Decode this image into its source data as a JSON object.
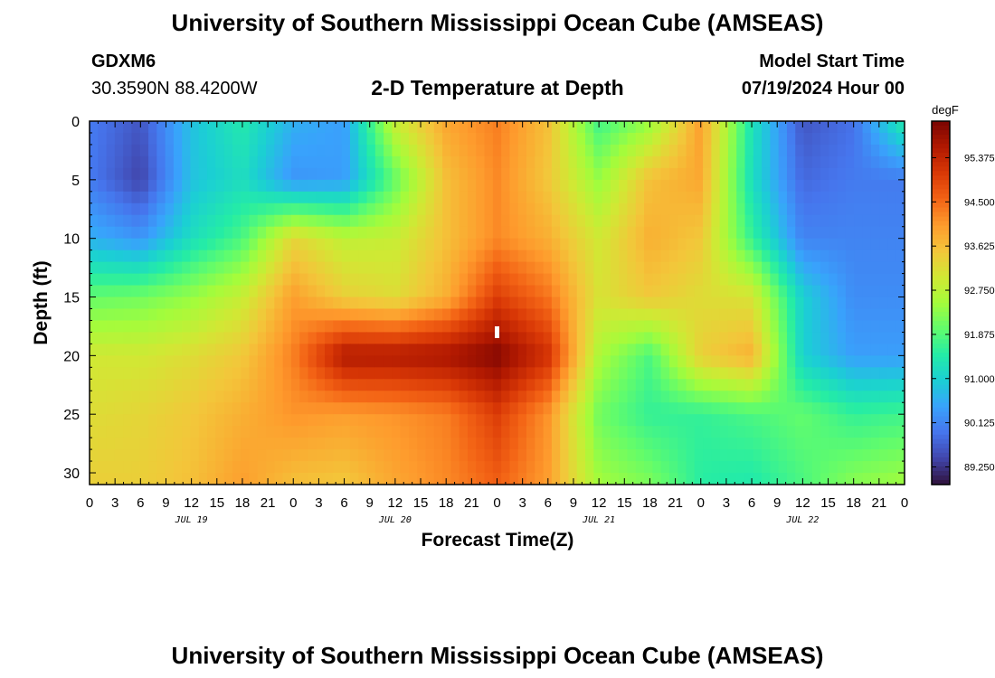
{
  "header": {
    "title": "University of Southern Mississippi Ocean Cube (AMSEAS)",
    "station": "GDXM6",
    "coords": "30.3590N  88.4200W",
    "plot_title": "2-D Temperature at Depth",
    "start_label": "Model Start Time",
    "start_value": "07/19/2024 Hour 00"
  },
  "footer": {
    "title": "University of Southern Mississippi Ocean Cube (AMSEAS)"
  },
  "chart_data": {
    "type": "heatmap",
    "title": "2-D Temperature at Depth",
    "xlabel": "Forecast Time(Z)",
    "ylabel": "Depth (ft)",
    "x_tick_labels": [
      "0",
      "3",
      "6",
      "9",
      "12",
      "15",
      "18",
      "21",
      "0",
      "3",
      "6",
      "9",
      "12",
      "15",
      "18",
      "21",
      "0",
      "3",
      "6",
      "9",
      "12",
      "15",
      "18",
      "21",
      "0",
      "3",
      "6",
      "9",
      "12",
      "15",
      "18",
      "21",
      "0"
    ],
    "x_range_hours": [
      0,
      96
    ],
    "date_labels": [
      {
        "label": "JUL 19",
        "hour": 12
      },
      {
        "label": "JUL 20",
        "hour": 36
      },
      {
        "label": "JUL 21",
        "hour": 60
      },
      {
        "label": "JUL 22",
        "hour": 84
      }
    ],
    "y_ticks": [
      0,
      5,
      10,
      15,
      20,
      25,
      30
    ],
    "y_range": [
      0,
      31
    ],
    "y_inverted": true,
    "colorbar": {
      "unit": "degF",
      "ticks": [
        "95.375",
        "94.500",
        "93.625",
        "92.750",
        "91.875",
        "91.000",
        "90.125",
        "89.250"
      ],
      "range": [
        88.9,
        96.1
      ]
    },
    "color_stops": [
      "#30123b",
      "#4145ab",
      "#4675ed",
      "#39a2fc",
      "#1bcfd4",
      "#24eca6",
      "#61fc6c",
      "#a4fc3b",
      "#d1e834",
      "#f3c63a",
      "#fe9b2d",
      "#f36315",
      "#d93806",
      "#b11901",
      "#7a0402"
    ],
    "depths": [
      0,
      5,
      10,
      15,
      20,
      25,
      31
    ],
    "hours": [
      0,
      6,
      12,
      18,
      24,
      30,
      36,
      42,
      48,
      54,
      60,
      66,
      72,
      78,
      84,
      90,
      96
    ],
    "temperature_degF": [
      [
        90.0,
        89.6,
        90.8,
        91.4,
        90.6,
        90.4,
        92.9,
        93.9,
        94.3,
        93.6,
        91.7,
        92.4,
        94.0,
        91.3,
        89.6,
        89.9,
        91.5
      ],
      [
        90.0,
        89.4,
        90.8,
        91.2,
        90.3,
        90.4,
        92.0,
        93.6,
        94.2,
        93.5,
        92.4,
        93.6,
        93.9,
        91.2,
        89.8,
        90.0,
        90.0
      ],
      [
        90.6,
        90.3,
        91.2,
        91.8,
        93.3,
        92.8,
        92.9,
        93.6,
        94.2,
        93.8,
        93.0,
        93.8,
        93.5,
        91.6,
        90.1,
        90.1,
        90.1
      ],
      [
        92.0,
        92.1,
        92.4,
        92.9,
        94.0,
        93.4,
        93.2,
        93.8,
        95.0,
        94.4,
        93.1,
        93.5,
        93.2,
        93.1,
        91.0,
        90.2,
        90.2
      ],
      [
        93.0,
        93.0,
        93.2,
        93.5,
        94.3,
        95.6,
        95.6,
        95.7,
        96.0,
        95.2,
        92.6,
        91.8,
        93.4,
        93.8,
        91.0,
        90.4,
        90.4
      ],
      [
        93.2,
        93.3,
        93.5,
        93.8,
        94.1,
        94.0,
        94.1,
        94.3,
        95.0,
        94.1,
        92.1,
        91.6,
        91.6,
        91.8,
        92.0,
        91.6,
        91.7
      ],
      [
        93.4,
        93.4,
        93.6,
        94.0,
        93.6,
        93.5,
        93.9,
        94.2,
        94.6,
        94.0,
        92.5,
        92.2,
        91.5,
        91.4,
        91.8,
        92.3,
        92.5
      ]
    ]
  }
}
